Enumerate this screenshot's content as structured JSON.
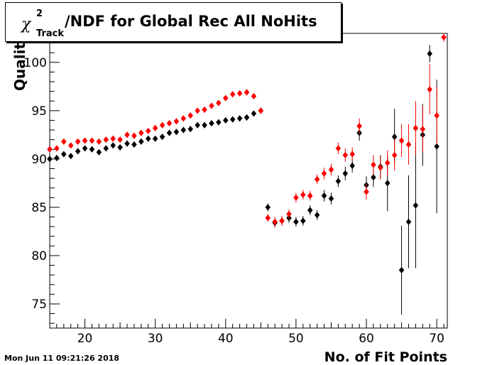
{
  "title": {
    "symbol": "χ",
    "superscript": "2",
    "subscript": "Track",
    "text": "/NDF for Global Rec All NoHits"
  },
  "ylabel_visible": "Qualit",
  "xlabel": "No. of Fit Points",
  "datestamp": "Mon Jun 11 09:21:26 2018",
  "colors": {
    "series_black": "#000000",
    "series_red": "#ff0000",
    "frame": "#000000"
  },
  "chart_data": {
    "type": "scatter",
    "title": "χ²Track/NDF for Global Rec All NoHits",
    "xlabel": "No. of Fit Points",
    "ylabel": "Qualit",
    "xlim": [
      15,
      71.5
    ],
    "ylim": [
      72.5,
      103
    ],
    "xticks": [
      20,
      30,
      40,
      50,
      60,
      70
    ],
    "yticks": [
      75,
      80,
      85,
      90,
      95,
      100
    ],
    "grid": false,
    "series": [
      {
        "color": "#000000",
        "points": [
          [
            15,
            90.0,
            0.1
          ],
          [
            16,
            90.1,
            0.1
          ],
          [
            17,
            90.5,
            0.1
          ],
          [
            18,
            90.3,
            0.1
          ],
          [
            19,
            90.8,
            0.1
          ],
          [
            20,
            91.1,
            0.1
          ],
          [
            21,
            91.0,
            0.1
          ],
          [
            22,
            90.7,
            0.1
          ],
          [
            23,
            91.1,
            0.1
          ],
          [
            24,
            91.4,
            0.1
          ],
          [
            25,
            91.2,
            0.1
          ],
          [
            26,
            91.6,
            0.1
          ],
          [
            27,
            91.5,
            0.1
          ],
          [
            28,
            91.8,
            0.1
          ],
          [
            29,
            92.1,
            0.1
          ],
          [
            30,
            92.1,
            0.1
          ],
          [
            31,
            92.3,
            0.1
          ],
          [
            32,
            92.7,
            0.1
          ],
          [
            33,
            92.8,
            0.1
          ],
          [
            34,
            93.0,
            0.1
          ],
          [
            35,
            93.1,
            0.1
          ],
          [
            36,
            93.5,
            0.1
          ],
          [
            37,
            93.5,
            0.1
          ],
          [
            38,
            93.7,
            0.1
          ],
          [
            39,
            93.8,
            0.1
          ],
          [
            40,
            94.0,
            0.1
          ],
          [
            41,
            94.1,
            0.1
          ],
          [
            42,
            94.2,
            0.1
          ],
          [
            43,
            94.3,
            0.1
          ],
          [
            44,
            94.7,
            0.1
          ],
          [
            45,
            95.0,
            0.1
          ],
          [
            46,
            85.0,
            0.4
          ],
          [
            47,
            83.4,
            0.5
          ],
          [
            48,
            83.6,
            0.5
          ],
          [
            49,
            83.9,
            0.5
          ],
          [
            50,
            83.5,
            0.5
          ],
          [
            51,
            83.6,
            0.5
          ],
          [
            52,
            84.7,
            0.5
          ],
          [
            53,
            84.2,
            0.5
          ],
          [
            54,
            86.2,
            0.6
          ],
          [
            55,
            85.9,
            0.6
          ],
          [
            56,
            87.7,
            0.6
          ],
          [
            57,
            88.5,
            0.7
          ],
          [
            58,
            89.3,
            0.7
          ],
          [
            59,
            92.7,
            0.8
          ],
          [
            60,
            87.3,
            0.9
          ],
          [
            61,
            88.1,
            1.0
          ],
          [
            62,
            89.2,
            1.2
          ],
          [
            63,
            87.5,
            2.9
          ],
          [
            64,
            92.3,
            2.9
          ],
          [
            65,
            78.5,
            4.6
          ],
          [
            66,
            83.5,
            4.8
          ],
          [
            67,
            85.2,
            6.5
          ],
          [
            68,
            92.5,
            3.2
          ],
          [
            69,
            100.9,
            0.9
          ],
          [
            70,
            91.3,
            6.9
          ]
        ]
      },
      {
        "color": "#ff0000",
        "points": [
          [
            15,
            91.0,
            0.1
          ],
          [
            16,
            91.1,
            0.1
          ],
          [
            17,
            91.8,
            0.1
          ],
          [
            18,
            91.4,
            0.1
          ],
          [
            19,
            91.8,
            0.1
          ],
          [
            20,
            91.9,
            0.1
          ],
          [
            21,
            91.9,
            0.1
          ],
          [
            22,
            91.8,
            0.1
          ],
          [
            23,
            92.0,
            0.1
          ],
          [
            24,
            92.1,
            0.1
          ],
          [
            25,
            92.0,
            0.1
          ],
          [
            26,
            92.5,
            0.1
          ],
          [
            27,
            92.4,
            0.1
          ],
          [
            28,
            92.7,
            0.1
          ],
          [
            29,
            92.9,
            0.1
          ],
          [
            30,
            93.2,
            0.1
          ],
          [
            31,
            93.5,
            0.1
          ],
          [
            32,
            93.7,
            0.1
          ],
          [
            33,
            93.9,
            0.1
          ],
          [
            34,
            94.2,
            0.1
          ],
          [
            35,
            94.5,
            0.1
          ],
          [
            36,
            95.0,
            0.1
          ],
          [
            37,
            95.1,
            0.1
          ],
          [
            38,
            95.5,
            0.1
          ],
          [
            39,
            95.8,
            0.1
          ],
          [
            40,
            96.3,
            0.1
          ],
          [
            41,
            96.7,
            0.1
          ],
          [
            42,
            96.8,
            0.1
          ],
          [
            43,
            96.9,
            0.1
          ],
          [
            44,
            96.5,
            0.1
          ],
          [
            45,
            95.0,
            0.1
          ],
          [
            46,
            83.9,
            0.4
          ],
          [
            47,
            83.5,
            0.5
          ],
          [
            48,
            83.6,
            0.5
          ],
          [
            49,
            84.3,
            0.5
          ],
          [
            50,
            86.0,
            0.5
          ],
          [
            51,
            86.3,
            0.5
          ],
          [
            52,
            86.2,
            0.5
          ],
          [
            53,
            87.9,
            0.5
          ],
          [
            54,
            88.5,
            0.6
          ],
          [
            55,
            88.9,
            0.6
          ],
          [
            56,
            91.1,
            0.6
          ],
          [
            57,
            90.4,
            0.7
          ],
          [
            58,
            90.5,
            0.7
          ],
          [
            59,
            93.4,
            0.8
          ],
          [
            60,
            86.6,
            0.8
          ],
          [
            61,
            89.4,
            1.0
          ],
          [
            62,
            89.1,
            1.2
          ],
          [
            63,
            89.6,
            1.3
          ],
          [
            64,
            90.4,
            1.6
          ],
          [
            65,
            91.9,
            1.7
          ],
          [
            66,
            91.5,
            2.1
          ],
          [
            67,
            93.2,
            2.8
          ],
          [
            68,
            93.1,
            2.4
          ],
          [
            69,
            97.2,
            2.6
          ],
          [
            70,
            94.5,
            3.0
          ],
          [
            71,
            102.6,
            0.5
          ]
        ]
      }
    ]
  }
}
